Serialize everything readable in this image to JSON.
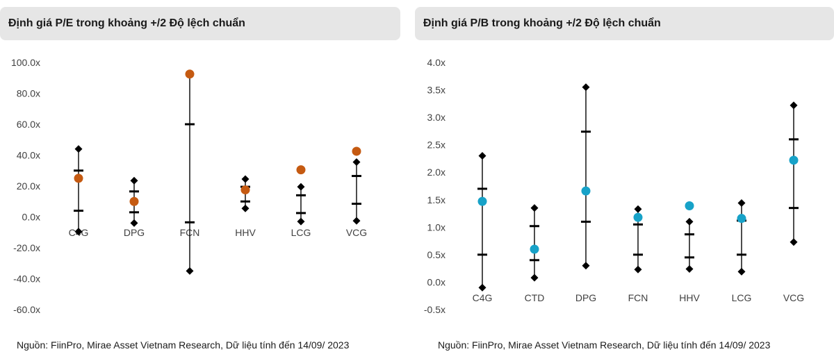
{
  "colors": {
    "marker": "#000000",
    "pe_current": "#c55a11",
    "pb_current": "#17a2c8",
    "text": "#404040"
  },
  "charts": [
    {
      "id": "pe",
      "title": "Định giá P/E trong khoảng +/2 Độ lệch chuẩn",
      "source": "Nguồn: FiinPro, Mirae Asset Vietnam Research, Dữ liệu tính đến 14/09/ 2023"
    },
    {
      "id": "pb",
      "title": "Định giá P/B trong khoảng +/2 Độ lệch chuẩn",
      "source": "Nguồn: FiinPro, Mirae Asset Vietnam Research, Dữ liệu tính đến 14/09/ 2023"
    }
  ],
  "chart_data": [
    {
      "type": "scatter",
      "title": "Định giá P/E trong khoảng +/2 Độ lệch chuẩn",
      "xlabel": "",
      "ylabel": "",
      "ylim": [
        -60,
        100
      ],
      "yticks": [
        100,
        80,
        60,
        40,
        20,
        0,
        -20,
        -40,
        -60
      ],
      "tick_suffix": "x",
      "tick_decimals": 1,
      "grid": false,
      "categories": [
        "C4G",
        "DPG",
        "FCN",
        "HHV",
        "LCG",
        "VCG"
      ],
      "series": [
        {
          "name": "",
          "role": "max",
          "marker": "diamond",
          "values": [
            44.0,
            23.5,
            92.0,
            24.5,
            19.5,
            35.5
          ]
        },
        {
          "name": "",
          "role": "plus1sd",
          "marker": "dash",
          "values": [
            30.0,
            16.5,
            60.0,
            19.5,
            14.0,
            26.5
          ]
        },
        {
          "name": "",
          "role": "minus1sd",
          "marker": "dash",
          "values": [
            4.0,
            3.0,
            -3.5,
            10.0,
            2.5,
            8.5
          ]
        },
        {
          "name": "",
          "role": "min",
          "marker": "diamond",
          "values": [
            -9.5,
            -4.0,
            -35.0,
            5.5,
            -3.0,
            -2.5
          ]
        },
        {
          "name": "",
          "role": "current",
          "marker": "circle",
          "values": [
            25.0,
            10.0,
            92.5,
            17.5,
            30.5,
            42.5
          ]
        }
      ]
    },
    {
      "type": "scatter",
      "title": "Định giá P/B trong khoảng +/2 Độ lệch chuẩn",
      "xlabel": "",
      "ylabel": "",
      "ylim": [
        -0.5,
        4.0
      ],
      "yticks": [
        4.0,
        3.5,
        3.0,
        2.5,
        2.0,
        1.5,
        1.0,
        0.5,
        0.0,
        -0.5
      ],
      "tick_suffix": "x",
      "tick_decimals": 1,
      "grid": false,
      "categories": [
        "C4G",
        "CTD",
        "DPG",
        "FCN",
        "HHV",
        "LCG",
        "VCG"
      ],
      "series": [
        {
          "name": "",
          "role": "max",
          "marker": "diamond",
          "values": [
            2.3,
            1.35,
            3.55,
            1.33,
            1.1,
            1.44,
            3.22
          ]
        },
        {
          "name": "",
          "role": "plus1sd",
          "marker": "dash",
          "values": [
            1.7,
            1.02,
            2.74,
            1.05,
            0.87,
            1.12,
            2.6
          ]
        },
        {
          "name": "",
          "role": "minus1sd",
          "marker": "dash",
          "values": [
            0.5,
            0.4,
            1.1,
            0.5,
            0.45,
            0.5,
            1.35
          ]
        },
        {
          "name": "",
          "role": "min",
          "marker": "diamond",
          "values": [
            -0.1,
            0.08,
            0.3,
            0.23,
            0.24,
            0.19,
            0.73
          ]
        },
        {
          "name": "",
          "role": "current",
          "marker": "circle",
          "values": [
            1.47,
            0.6,
            1.66,
            1.18,
            1.39,
            1.16,
            2.22
          ]
        }
      ]
    }
  ]
}
